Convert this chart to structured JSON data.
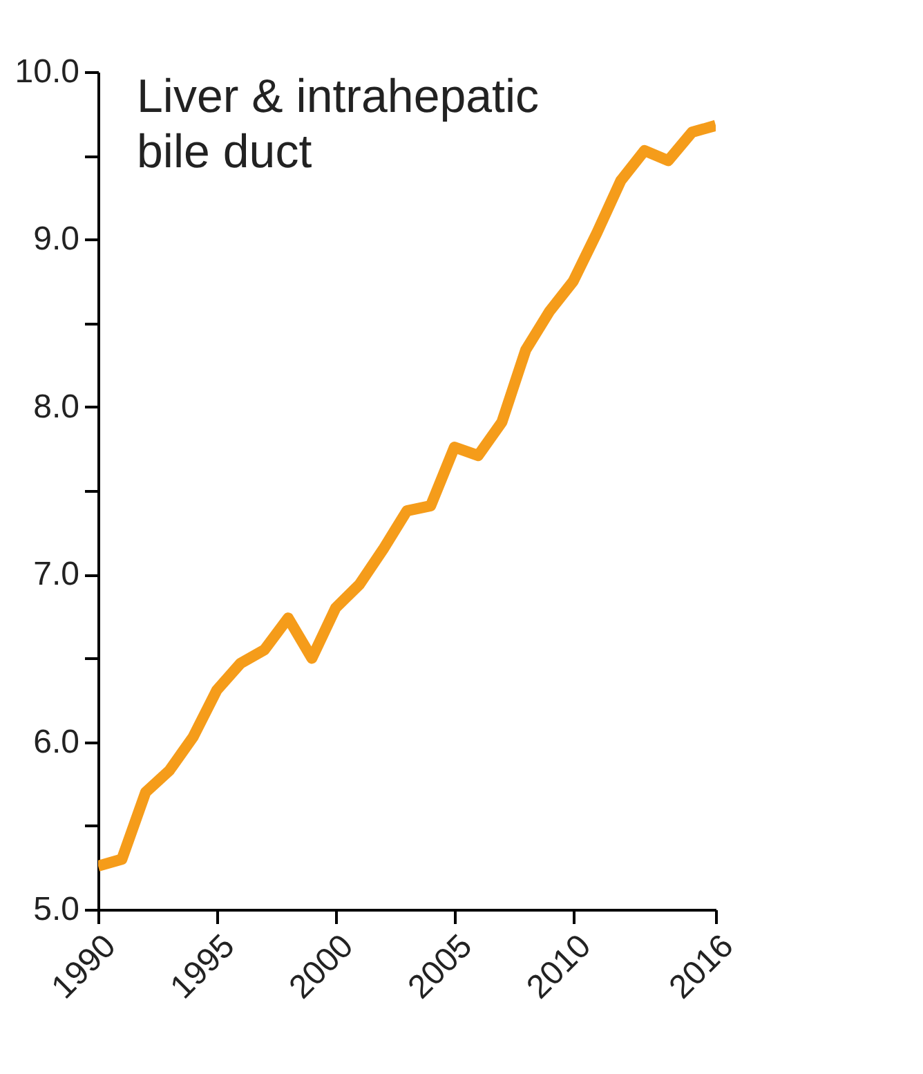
{
  "chart_data": {
    "type": "line",
    "title": "Liver & intrahepatic\nbile duct",
    "x": [
      1990,
      1991,
      1992,
      1993,
      1994,
      1995,
      1996,
      1997,
      1998,
      1999,
      2000,
      2001,
      2002,
      2003,
      2004,
      2005,
      2006,
      2007,
      2008,
      2009,
      2010,
      2011,
      2012,
      2013,
      2014,
      2015,
      2016
    ],
    "series": [
      {
        "color": "#f59c1a",
        "values": [
          5.26,
          5.3,
          5.7,
          5.83,
          6.03,
          6.31,
          6.47,
          6.55,
          6.74,
          6.5,
          6.8,
          6.94,
          7.15,
          7.38,
          7.41,
          7.76,
          7.71,
          7.91,
          8.34,
          8.57,
          8.75,
          9.04,
          9.35,
          9.53,
          9.47,
          9.64,
          9.68
        ]
      }
    ],
    "xlim": [
      1990,
      2016
    ],
    "xticks": [
      1990,
      1995,
      2000,
      2005,
      2010,
      2016
    ],
    "ylim": [
      5,
      10
    ],
    "yticks": [
      {
        "value": 5,
        "label": "5.0"
      },
      {
        "value": 5.5,
        "label": null
      },
      {
        "value": 6,
        "label": "6.0"
      },
      {
        "value": 6.5,
        "label": null
      },
      {
        "value": 7,
        "label": "7.0"
      },
      {
        "value": 7.5,
        "label": null
      },
      {
        "value": 8,
        "label": "8.0"
      },
      {
        "value": 8.5,
        "label": null
      },
      {
        "value": 9,
        "label": "9.0"
      },
      {
        "value": 9.5,
        "label": null
      },
      {
        "value": 10,
        "label": "10.0"
      }
    ],
    "grid": false,
    "marker": "none",
    "line_style": "solid"
  }
}
